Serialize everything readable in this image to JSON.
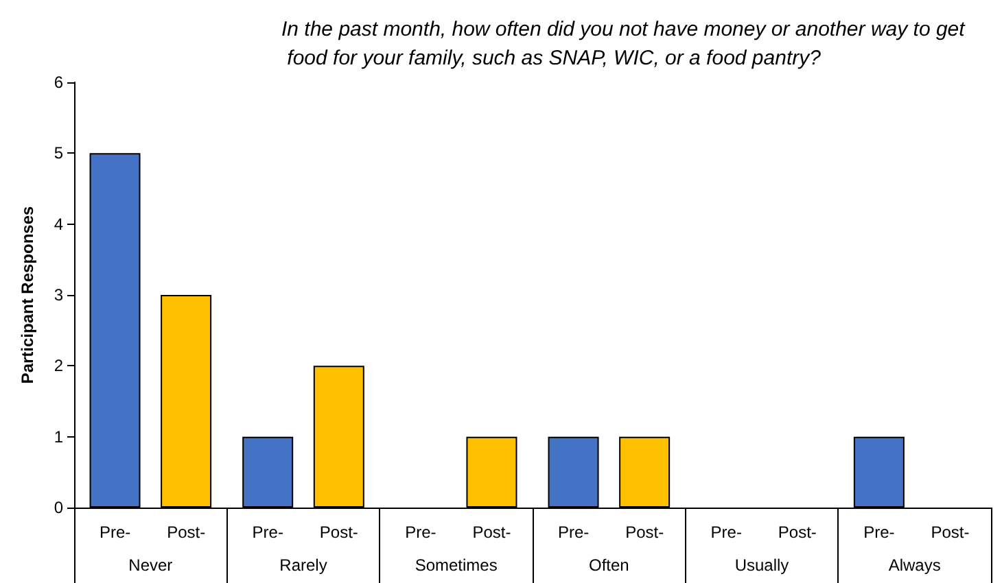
{
  "chart_data": {
    "type": "bar",
    "title": "In the past month, how often did you not have money or another way to get food for your family, such as SNAP, WIC, or a food pantry?",
    "ylabel": "Participant Responses",
    "categories": [
      "Never",
      "Rarely",
      "Sometimes",
      "Often",
      "Usually",
      "Always"
    ],
    "series": [
      {
        "name": "Pre-",
        "color": "#4472c4",
        "values": [
          5,
          1,
          0,
          1,
          0,
          1
        ]
      },
      {
        "name": "Post-",
        "color": "#ffc000",
        "values": [
          3,
          2,
          1,
          1,
          0,
          0
        ]
      }
    ],
    "ylim": [
      0,
      6
    ],
    "yticks": [
      0,
      1,
      2,
      3,
      4,
      5,
      6
    ],
    "grid": false,
    "legend": false
  }
}
